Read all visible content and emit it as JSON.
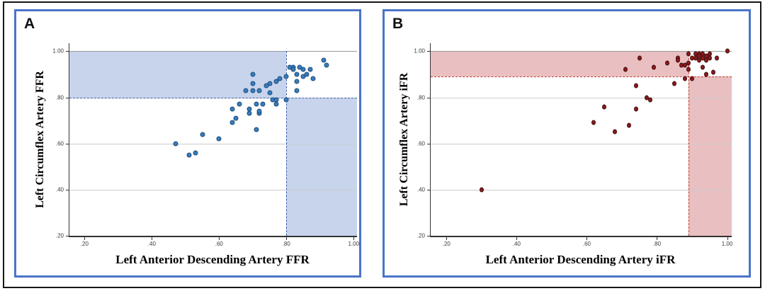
{
  "figure": {
    "outer_border_color": "#161616",
    "panel_border_color": "#4a74c9",
    "background_color": "#ffffff"
  },
  "chart_data": [
    {
      "type": "scatter",
      "panel_label": "A",
      "xlabel": "Left Anterior Descending Artery FFR",
      "ylabel": "Left Circumflex Artery FFR",
      "xlim": [
        0.155,
        1.01
      ],
      "ylim": [
        0.2,
        1.035
      ],
      "x_ticks": [
        {
          "value": 0.2,
          "label": ".20"
        },
        {
          "value": 0.4,
          "label": ".40"
        },
        {
          "value": 0.6,
          "label": ".60"
        },
        {
          "value": 0.8,
          "label": ".80"
        },
        {
          "value": 1.0,
          "label": "1.00"
        }
      ],
      "y_ticks": [
        {
          "value": 0.2,
          "label": ".20"
        },
        {
          "value": 0.4,
          "label": ".40"
        },
        {
          "value": 0.6,
          "label": ".60"
        },
        {
          "value": 0.8,
          "label": ".80"
        },
        {
          "value": 1.0,
          "label": "1.00"
        }
      ],
      "grid": "horizontal-only",
      "legend": "none",
      "threshold_x": 0.8,
      "threshold_y": 0.8,
      "band_top": 1.0,
      "band_color": "#c7d4ec",
      "threshold_line_color": "#4060b0",
      "point_color": "#3a7cbb",
      "point_edge_color": "#1d4e7e",
      "points": [
        [
          0.47,
          0.6
        ],
        [
          0.51,
          0.55
        ],
        [
          0.53,
          0.56
        ],
        [
          0.55,
          0.64
        ],
        [
          0.6,
          0.62
        ],
        [
          0.64,
          0.69
        ],
        [
          0.64,
          0.75
        ],
        [
          0.65,
          0.71
        ],
        [
          0.66,
          0.77
        ],
        [
          0.69,
          0.75
        ],
        [
          0.69,
          0.73
        ],
        [
          0.71,
          0.66
        ],
        [
          0.71,
          0.77
        ],
        [
          0.72,
          0.73
        ],
        [
          0.72,
          0.74
        ],
        [
          0.73,
          0.77
        ],
        [
          0.76,
          0.79
        ],
        [
          0.77,
          0.79
        ],
        [
          0.77,
          0.77
        ],
        [
          0.8,
          0.79
        ],
        [
          0.68,
          0.83
        ],
        [
          0.7,
          0.83
        ],
        [
          0.7,
          0.86
        ],
        [
          0.7,
          0.9
        ],
        [
          0.72,
          0.83
        ],
        [
          0.74,
          0.85
        ],
        [
          0.75,
          0.86
        ],
        [
          0.75,
          0.82
        ],
        [
          0.77,
          0.87
        ],
        [
          0.78,
          0.88
        ],
        [
          0.8,
          0.89
        ],
        [
          0.81,
          0.93
        ],
        [
          0.82,
          0.93
        ],
        [
          0.82,
          0.92
        ],
        [
          0.84,
          0.93
        ],
        [
          0.83,
          0.9
        ],
        [
          0.83,
          0.87
        ],
        [
          0.83,
          0.83
        ],
        [
          0.85,
          0.92
        ],
        [
          0.85,
          0.89
        ],
        [
          0.86,
          0.9
        ],
        [
          0.87,
          0.92
        ],
        [
          0.88,
          0.88
        ],
        [
          0.91,
          0.96
        ],
        [
          0.92,
          0.94
        ]
      ]
    },
    {
      "type": "scatter",
      "panel_label": "B",
      "xlabel": "Left Anterior Descending Artery iFR",
      "ylabel": "Left Circumflex Artery iFR",
      "xlim": [
        0.155,
        1.013
      ],
      "ylim": [
        0.2,
        1.035
      ],
      "x_ticks": [
        {
          "value": 0.2,
          "label": ".20"
        },
        {
          "value": 0.4,
          "label": ".40"
        },
        {
          "value": 0.6,
          "label": ".60"
        },
        {
          "value": 0.8,
          "label": ".80"
        },
        {
          "value": 1.0,
          "label": "1.00"
        }
      ],
      "y_ticks": [
        {
          "value": 0.2,
          "label": ".20"
        },
        {
          "value": 0.4,
          "label": ".40"
        },
        {
          "value": 0.6,
          "label": ".60"
        },
        {
          "value": 0.8,
          "label": ".80"
        },
        {
          "value": 1.0,
          "label": "1.00"
        }
      ],
      "grid": "horizontal-only",
      "legend": "none",
      "threshold_x": 0.89,
      "threshold_y": 0.89,
      "band_top": 1.0,
      "band_color": "#e9bfc1",
      "threshold_line_color": "#c0392b",
      "point_color": "#8c1a1c",
      "point_edge_color": "#400c0d",
      "points": [
        [
          0.3,
          0.4
        ],
        [
          0.62,
          0.69
        ],
        [
          0.65,
          0.76
        ],
        [
          0.68,
          0.65
        ],
        [
          0.72,
          0.68
        ],
        [
          0.74,
          0.75
        ],
        [
          0.71,
          0.92
        ],
        [
          0.74,
          0.85
        ],
        [
          0.75,
          0.97
        ],
        [
          0.77,
          0.8
        ],
        [
          0.78,
          0.79
        ],
        [
          0.79,
          0.93
        ],
        [
          0.83,
          0.95
        ],
        [
          0.85,
          0.86
        ],
        [
          0.86,
          0.97
        ],
        [
          0.86,
          0.96
        ],
        [
          0.87,
          0.94
        ],
        [
          0.88,
          0.94
        ],
        [
          0.88,
          0.88
        ],
        [
          0.89,
          0.99
        ],
        [
          0.89,
          0.95
        ],
        [
          0.89,
          0.92
        ],
        [
          0.9,
          0.88
        ],
        [
          0.9,
          0.97
        ],
        [
          0.91,
          0.99
        ],
        [
          0.91,
          0.97
        ],
        [
          0.92,
          0.99
        ],
        [
          0.92,
          0.98
        ],
        [
          0.92,
          0.96
        ],
        [
          0.93,
          0.99
        ],
        [
          0.93,
          0.97
        ],
        [
          0.93,
          0.93
        ],
        [
          0.94,
          0.98
        ],
        [
          0.94,
          0.96
        ],
        [
          0.94,
          0.9
        ],
        [
          0.95,
          0.99
        ],
        [
          0.95,
          0.97
        ],
        [
          0.96,
          0.91
        ],
        [
          0.97,
          0.97
        ],
        [
          1.0,
          1.0
        ]
      ]
    }
  ]
}
